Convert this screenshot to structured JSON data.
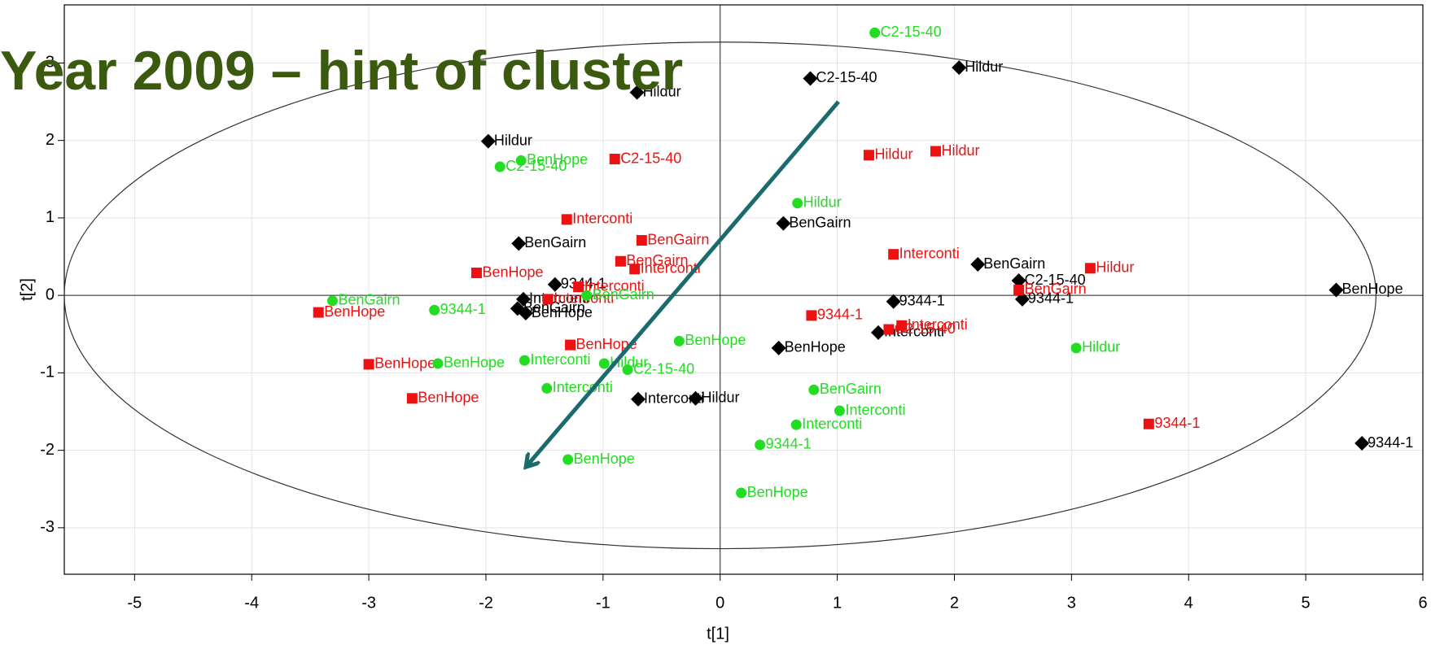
{
  "chart_data": {
    "type": "scatter",
    "title": "Year 2009 – hint of cluster",
    "x_label": "t[1]",
    "y_label": "t[2]",
    "xlim": [
      -5.6,
      6.0
    ],
    "ylim": [
      -3.6,
      3.75
    ],
    "xticks": [
      -5,
      -4,
      -3,
      -2,
      -1,
      0,
      1,
      2,
      3,
      4,
      5,
      6
    ],
    "yticks": [
      -3,
      -2,
      -1,
      0,
      1,
      2,
      3
    ],
    "grid": true,
    "ellipse": {
      "rx": 5.6,
      "ry": 3.27
    },
    "arrow": {
      "from": [
        1.01,
        2.5
      ],
      "to": [
        -1.65,
        -2.2
      ],
      "color": "#1b6b6e"
    },
    "series": [
      {
        "marker": "diamond",
        "color": "#000000",
        "x": [
          -0.71,
          0.77,
          2.04,
          -1.98,
          0.54,
          -1.72,
          -1.41,
          -1.68,
          -1.73,
          -1.66,
          2.2,
          2.55,
          2.58,
          1.48,
          1.35,
          0.5,
          -0.7,
          -0.21,
          5.26,
          5.48
        ],
        "y": [
          2.62,
          2.8,
          2.94,
          1.99,
          0.93,
          0.67,
          0.14,
          -0.05,
          -0.17,
          -0.23,
          0.4,
          0.19,
          -0.05,
          -0.08,
          -0.48,
          -0.68,
          -1.34,
          -1.33,
          0.07,
          -1.91
        ],
        "labels": [
          "Hildur",
          "C2-15-40",
          "Hildur",
          "Hildur",
          "BenGairn",
          "BenGairn",
          "9344-1",
          "Interconti",
          "BenGairn",
          "BenHope",
          "BenGairn",
          "C2-15-40",
          "9344-1",
          "9344-1",
          "Interconti",
          "BenHope",
          "Interconti",
          "Hildur",
          "BenHope",
          "9344-1"
        ]
      },
      {
        "marker": "square",
        "color": "#ee1111",
        "x": [
          -0.9,
          1.27,
          1.84,
          -1.31,
          -0.67,
          -0.85,
          -0.73,
          -2.08,
          -1.21,
          1.48,
          3.16,
          2.55,
          -1.47,
          -3.43,
          0.78,
          1.55,
          1.44,
          -1.28,
          -3.0,
          -2.63,
          3.66
        ],
        "y": [
          1.76,
          1.81,
          1.86,
          0.98,
          0.71,
          0.44,
          0.34,
          0.29,
          0.11,
          0.53,
          0.35,
          0.07,
          -0.05,
          -0.22,
          -0.26,
          -0.39,
          -0.44,
          -0.64,
          -0.89,
          -1.33,
          -1.66
        ],
        "labels": [
          "C2-15-40",
          "Hildur",
          "Hildur",
          "Interconti",
          "BenGairn",
          "BenGairn",
          "Interconti",
          "BenHope",
          "Interconti",
          "Interconti",
          "Hildur",
          "BenGairn",
          "Interconti",
          "BenHope",
          "9344-1",
          "Interconti",
          "C2-15-40",
          "BenHope",
          "BenHope",
          "BenHope",
          "9344-1"
        ]
      },
      {
        "marker": "circle",
        "color": "#22dd22",
        "x": [
          1.32,
          -1.7,
          -1.88,
          0.66,
          -3.31,
          -2.44,
          -1.14,
          -0.35,
          3.04,
          -1.67,
          -2.41,
          -0.99,
          -0.79,
          -1.48,
          0.8,
          1.02,
          0.65,
          0.34,
          -1.3,
          0.18
        ],
        "y": [
          3.39,
          1.74,
          1.66,
          1.19,
          -0.07,
          -0.19,
          0.0,
          -0.59,
          -0.68,
          -0.84,
          -0.88,
          -0.88,
          -0.96,
          -1.2,
          -1.22,
          -1.49,
          -1.67,
          -1.93,
          -2.12,
          -2.55
        ],
        "labels": [
          "C2-15-40",
          "BenHope",
          "C2-15-40",
          "Hildur",
          "BenGairn",
          "9344-1",
          "BenGairn",
          "BenHope",
          "Hildur",
          "Interconti",
          "BenHope",
          "Hildur",
          "C2-15-40",
          "Interconti",
          "BenGairn",
          "Interconti",
          "Interconti",
          "9344-1",
          "BenHope",
          "BenHope"
        ]
      }
    ]
  }
}
